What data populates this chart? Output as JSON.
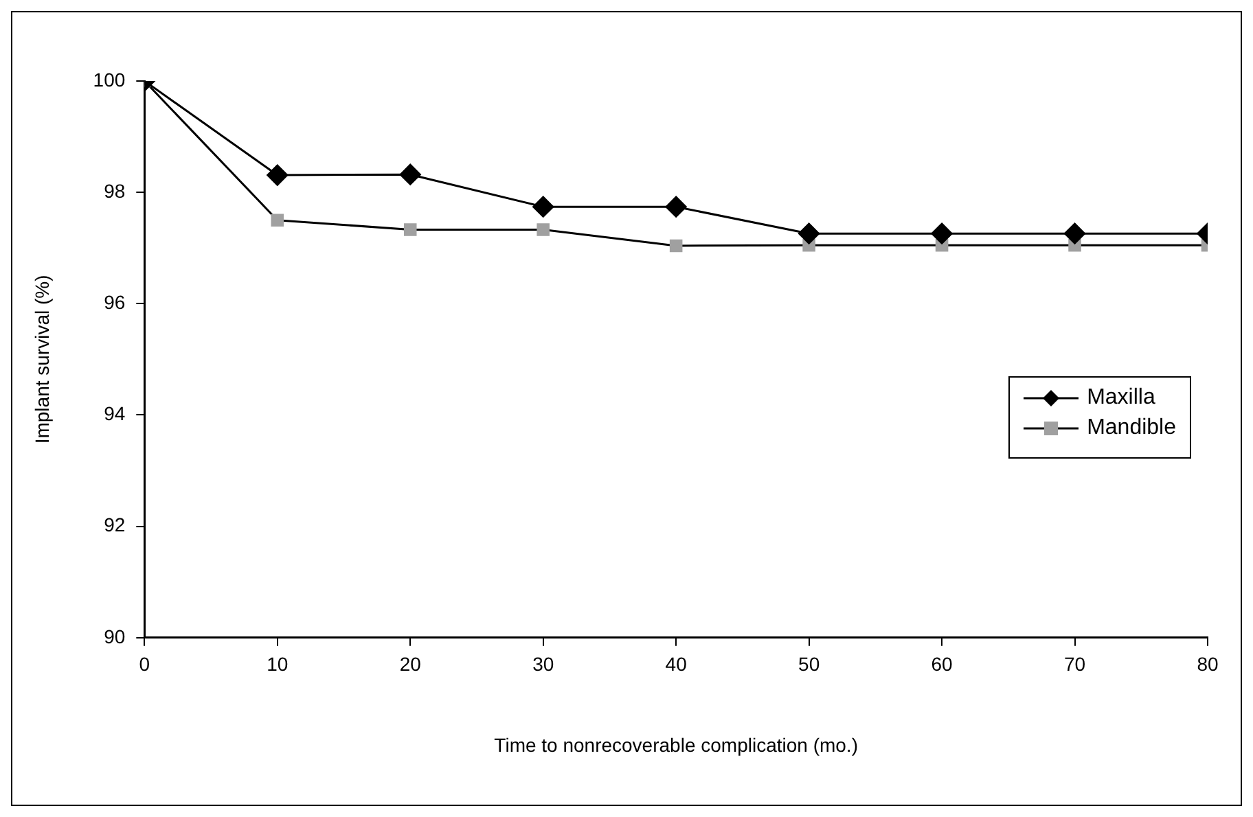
{
  "chart_data": {
    "type": "line",
    "xlabel": "Time to nonrecoverable complication (mo.)",
    "ylabel": "Implant survival (%)",
    "x": [
      0,
      10,
      20,
      30,
      40,
      50,
      60,
      70,
      80
    ],
    "xlim": [
      0,
      80
    ],
    "xticks": [
      0,
      10,
      20,
      30,
      40,
      50,
      60,
      70,
      80
    ],
    "ylim": [
      90,
      100
    ],
    "yticks": [
      90,
      92,
      94,
      96,
      98,
      100
    ],
    "grid": false,
    "legend": "right",
    "line_style": "solid",
    "series": [
      {
        "name": "Maxilla",
        "color": "#000000",
        "marker": "diamond",
        "values": [
          100,
          98.31,
          98.32,
          97.74,
          97.74,
          97.26,
          97.26,
          97.26,
          97.26
        ]
      },
      {
        "name": "Mandible",
        "color": "#a0a0a0",
        "marker": "square",
        "values": [
          100,
          97.5,
          97.33,
          97.33,
          97.04,
          97.05,
          97.05,
          97.05,
          97.05
        ]
      }
    ]
  }
}
